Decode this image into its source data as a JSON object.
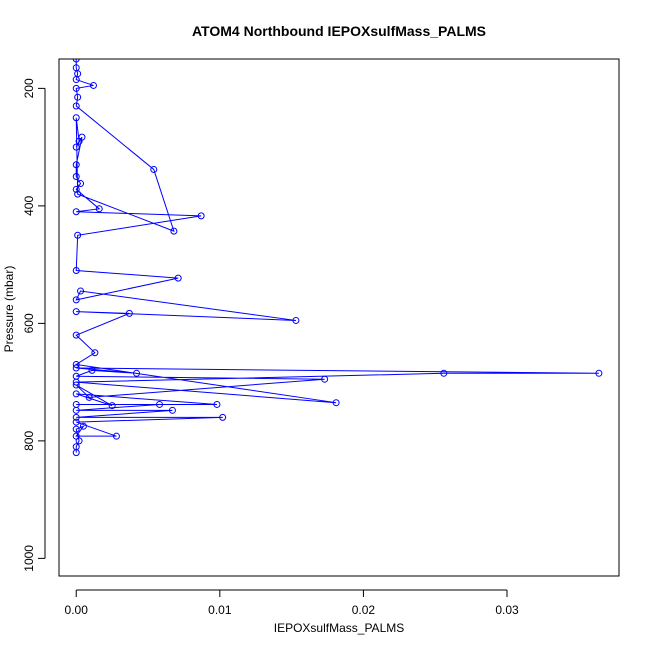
{
  "chart_data": {
    "type": "scatter",
    "title": "ATOM4 Northbound IEPOXsulfMass_PALMS",
    "xlabel": "IEPOXsulfMass_PALMS",
    "ylabel": "Pressure (mbar)",
    "xlim": [
      -0.0012,
      0.0378
    ],
    "ylim": [
      1030,
      150
    ],
    "y_inverted": true,
    "x_ticks": [
      0.0,
      0.01,
      0.02,
      0.03
    ],
    "x_tick_labels": [
      "0.00",
      "0.01",
      "0.02",
      "0.03"
    ],
    "y_ticks": [
      200,
      400,
      600,
      800,
      1000
    ],
    "y_tick_labels": [
      "200",
      "400",
      "600",
      "800",
      "1000"
    ],
    "grid": false,
    "series_color": "#0000ff",
    "marker": "open-circle",
    "connected": true,
    "series": [
      {
        "x": [
          0,
          0,
          0.0001,
          0,
          0.0012,
          0,
          0.0001,
          0,
          0.0054,
          0.0068,
          0.0001,
          0,
          0.0002,
          0,
          0.0004,
          0,
          0,
          0.0003,
          0,
          0.0016,
          0,
          0.0087,
          0.0001,
          0,
          0.0071,
          0,
          0.0003,
          0.0153,
          0,
          0.0037,
          0,
          0.0013,
          0,
          0.0181,
          0,
          0.0256,
          0.0364,
          0,
          0.0042,
          0.0011,
          0,
          0.0173,
          0.0009,
          0,
          0.0025,
          0,
          0.0098,
          0,
          0.0058,
          0,
          0.0067,
          0,
          0.0102,
          0,
          0.0028,
          0,
          0.0005,
          0,
          0.0002,
          0,
          0
        ],
        "y": [
          150,
          165,
          175,
          185,
          195,
          200,
          215,
          230,
          338,
          443,
          380,
          250,
          290,
          300,
          283,
          330,
          350,
          362,
          372,
          405,
          410,
          417,
          450,
          510,
          523,
          560,
          545,
          595,
          580,
          583,
          620,
          650,
          670,
          735,
          700,
          685,
          685,
          676,
          685,
          680,
          690,
          695,
          726,
          705,
          740,
          720,
          738,
          738,
          738,
          748,
          748,
          760,
          760,
          768,
          792,
          792,
          775,
          780,
          800,
          810,
          820
        ]
      }
    ]
  }
}
